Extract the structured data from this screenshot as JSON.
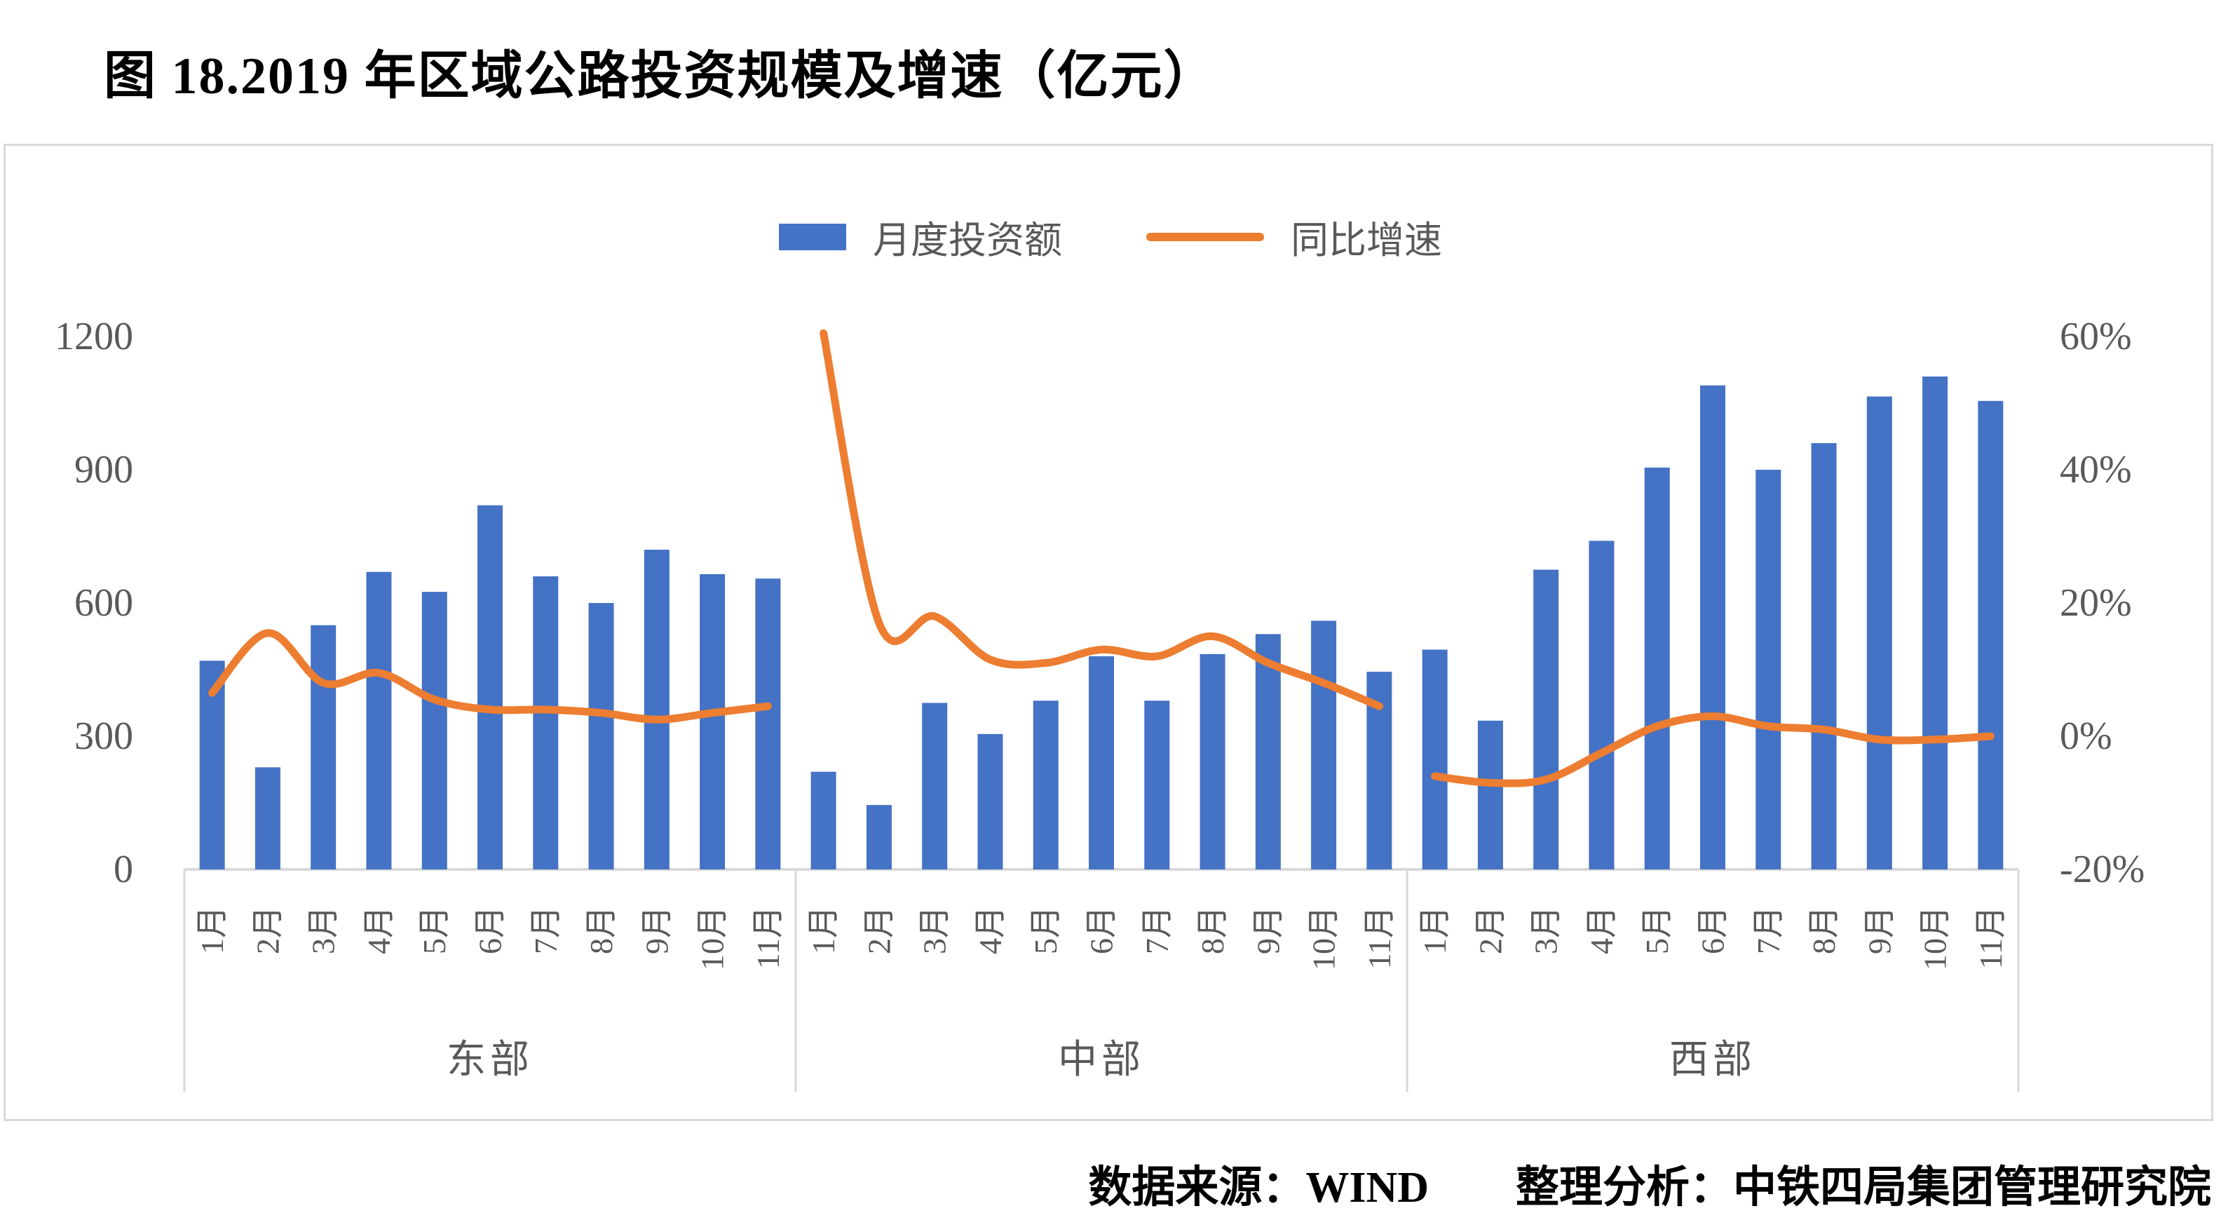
{
  "title": "图 18.2019 年区域公路投资规模及增速（亿元）",
  "legend": {
    "bar_label": "月度投资额",
    "line_label": "同比增速"
  },
  "footer": "数据来源：WIND　　整理分析：中铁四局集团管理研究院",
  "chart_data": {
    "type": "bar",
    "subtype": "grouped-bar-with-line-dual-axis",
    "title": "图 18.2019 年区域公路投资规模及增速（亿元）",
    "groups": [
      "东部",
      "中部",
      "西部"
    ],
    "categories": [
      "1月",
      "2月",
      "3月",
      "4月",
      "5月",
      "6月",
      "7月",
      "8月",
      "9月",
      "10月",
      "11月"
    ],
    "series": [
      {
        "name": "月度投资额",
        "type": "bar",
        "axis": "left",
        "unit": "亿元",
        "values": {
          "东部": [
            470,
            230,
            550,
            670,
            625,
            820,
            660,
            600,
            720,
            665,
            655
          ],
          "中部": [
            220,
            145,
            375,
            305,
            380,
            480,
            380,
            485,
            530,
            560,
            445
          ],
          "西部": [
            495,
            335,
            675,
            740,
            905,
            1090,
            900,
            960,
            1065,
            1110,
            1055
          ]
        }
      },
      {
        "name": "同比增速",
        "type": "line",
        "axis": "right",
        "unit": "%",
        "values": {
          "东部": [
            6.5,
            15.5,
            8,
            9.5,
            5.5,
            4,
            4,
            3.5,
            2.5,
            3.5,
            4.5
          ],
          "中部": [
            60.5,
            17,
            18,
            11.5,
            11,
            13,
            12,
            15,
            11,
            8,
            4.5
          ],
          "西部": [
            -6,
            -7,
            -6.5,
            -2.5,
            1.5,
            3,
            1.5,
            1,
            -0.5,
            -0.5,
            0
          ]
        }
      }
    ],
    "left_axis": {
      "label": "",
      "min": 0,
      "max": 1200,
      "ticks": [
        0,
        300,
        600,
        900,
        1200
      ]
    },
    "right_axis": {
      "label": "",
      "min": -20,
      "max": 60,
      "ticks": [
        "-20%",
        "0%",
        "20%",
        "40%",
        "60%"
      ]
    },
    "legend_position": "top-center",
    "grid": false,
    "colors": {
      "bar": "#4472C4",
      "line": "#ED7D31",
      "axis_text": "#595959",
      "frame": "#D9D9D9"
    }
  }
}
